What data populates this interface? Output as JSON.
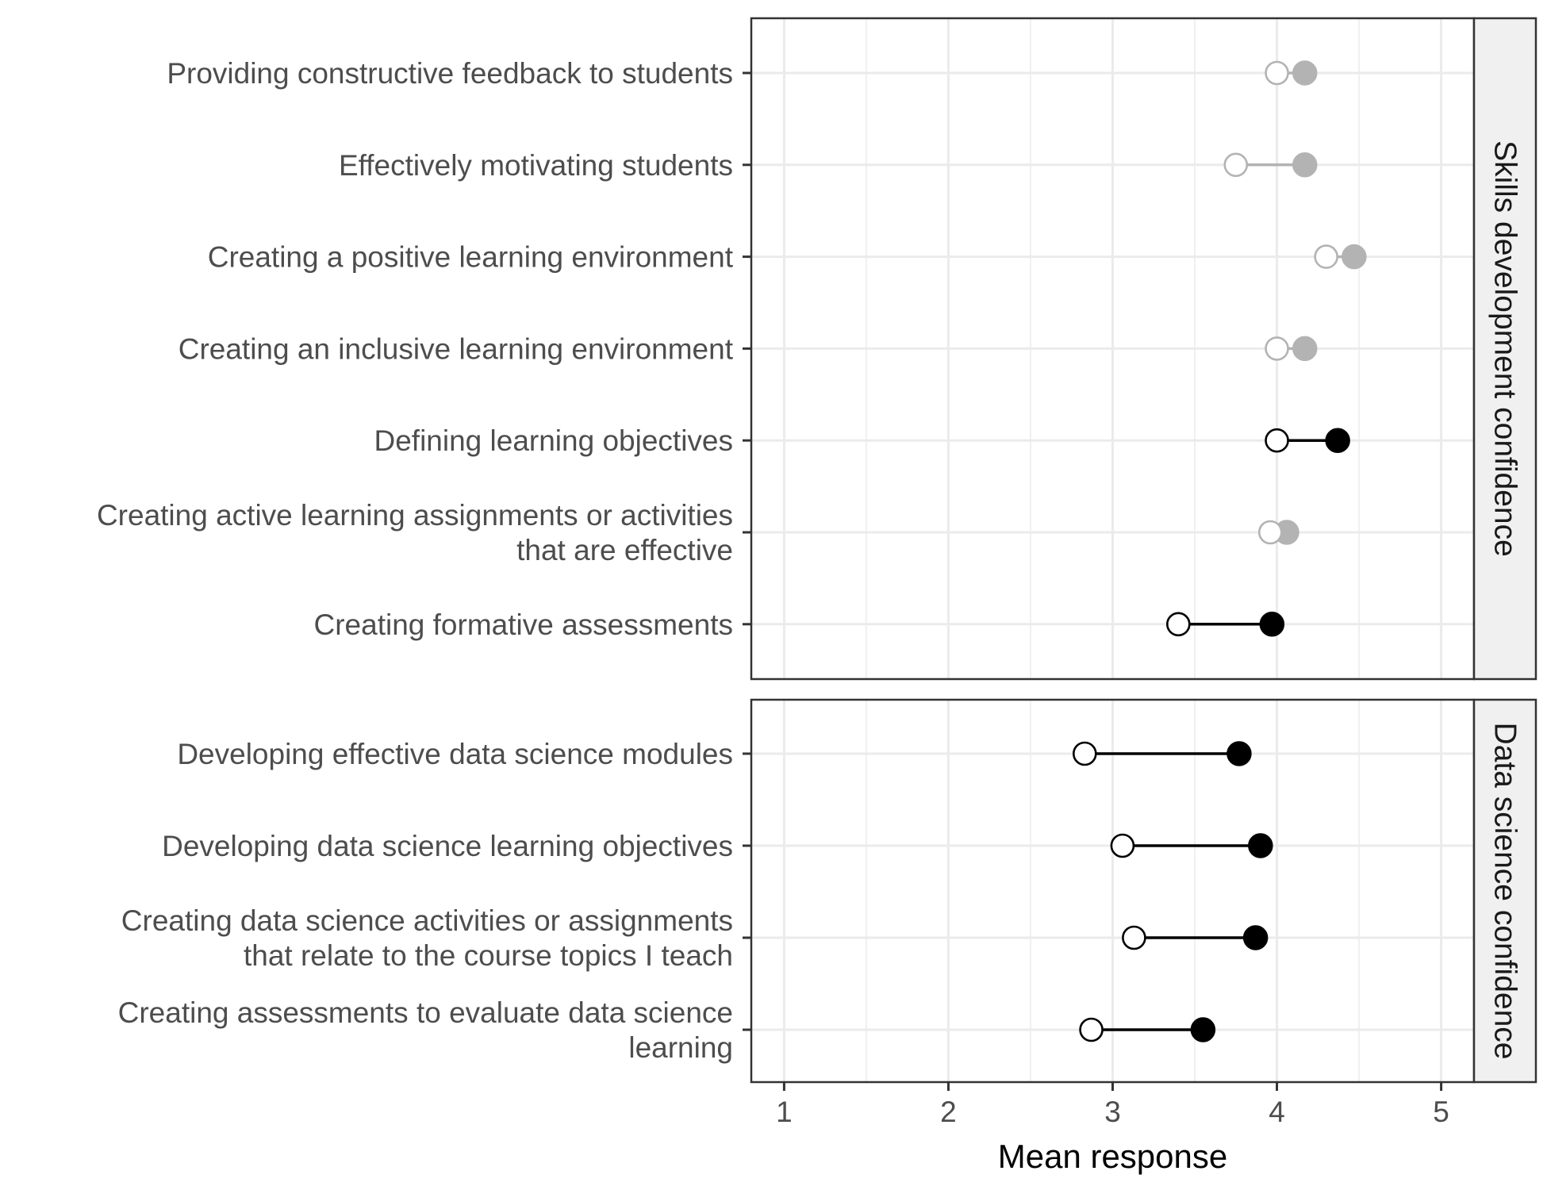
{
  "chart_data": {
    "type": "dumbbell",
    "xlabel": "Mean response",
    "xlim": [
      0.8,
      5.2
    ],
    "x_ticks": [
      "1",
      "2",
      "3",
      "4",
      "5"
    ],
    "x_tick_values": [
      1,
      2,
      3,
      4,
      5
    ],
    "grid": true,
    "colors": {
      "highlight": "#000000",
      "muted": "#b3b3b3",
      "open_fill": "#ffffff"
    },
    "panels": [
      {
        "name": "Skills development confidence",
        "items": [
          {
            "label": [
              "Providing constructive feedback to students"
            ],
            "pre": 4.0,
            "post": 4.17,
            "highlight": false
          },
          {
            "label": [
              "Effectively motivating students"
            ],
            "pre": 3.75,
            "post": 4.17,
            "highlight": false
          },
          {
            "label": [
              "Creating a positive learning environment"
            ],
            "pre": 4.3,
            "post": 4.47,
            "highlight": false
          },
          {
            "label": [
              "Creating an inclusive learning environment"
            ],
            "pre": 4.0,
            "post": 4.17,
            "highlight": false
          },
          {
            "label": [
              "Defining learning objectives"
            ],
            "pre": 4.0,
            "post": 4.37,
            "highlight": true
          },
          {
            "label": [
              "Creating active learning assignments or activities",
              "that are effective"
            ],
            "pre": 3.96,
            "post": 4.06,
            "highlight": false
          },
          {
            "label": [
              "Creating formative assessments"
            ],
            "pre": 3.4,
            "post": 3.97,
            "highlight": true
          }
        ]
      },
      {
        "name": "Data science confidence",
        "items": [
          {
            "label": [
              "Developing effective data science modules"
            ],
            "pre": 2.83,
            "post": 3.77,
            "highlight": true
          },
          {
            "label": [
              "Developing data science learning objectives"
            ],
            "pre": 3.06,
            "post": 3.9,
            "highlight": true
          },
          {
            "label": [
              "Creating data science activities or assignments",
              "that relate to the course topics I teach"
            ],
            "pre": 3.13,
            "post": 3.87,
            "highlight": true
          },
          {
            "label": [
              "Creating assessments to evaluate data science",
              "learning"
            ],
            "pre": 2.87,
            "post": 3.55,
            "highlight": true
          }
        ]
      }
    ]
  }
}
